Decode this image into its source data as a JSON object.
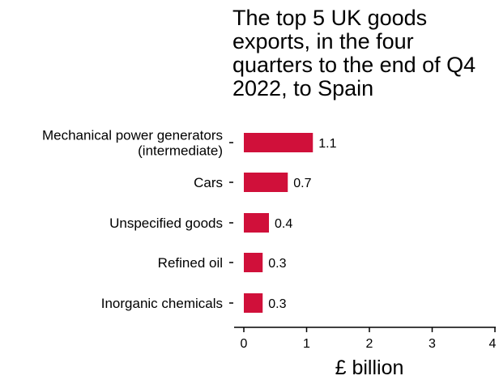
{
  "chart_data": {
    "type": "bar",
    "orientation": "horizontal",
    "title": "The top 5 UK goods\nexports, in the four\nquarters to the end of Q4\n2022, to Spain",
    "categories": [
      [
        "Mechanical power generators",
        "(intermediate)"
      ],
      [
        "Cars"
      ],
      [
        "Unspecified goods"
      ],
      [
        "Refined oil"
      ],
      [
        "Inorganic chemicals"
      ]
    ],
    "values": [
      1.1,
      0.7,
      0.4,
      0.3,
      0.3
    ],
    "value_labels": [
      "1.1",
      "0.7",
      "0.4",
      "0.3",
      "0.3"
    ],
    "xlabel": "£ billion",
    "ylabel": "",
    "xlim": [
      0,
      4
    ],
    "xticks": [
      0,
      1,
      2,
      3,
      4
    ],
    "bar_color": "#d0103a",
    "grid": false,
    "legend": "none"
  }
}
